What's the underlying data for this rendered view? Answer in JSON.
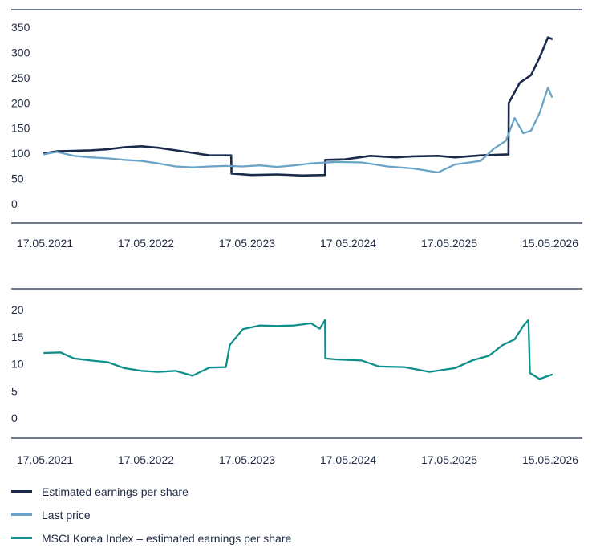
{
  "colors": {
    "eps": "#1b2a4a",
    "price": "#6aa3c8",
    "msci": "#0f8f8a",
    "axis": "#1b2a4a"
  },
  "chart_data": [
    {
      "type": "line",
      "x_ticks": [
        "17.05.2021",
        "17.05.2022",
        "17.05.2023",
        "17.05.2024",
        "17.05.2025",
        "15.05.2026"
      ],
      "y_ticks": [
        "0",
        "50",
        "100",
        "150",
        "200",
        "250",
        "300",
        "350"
      ],
      "ylim": [
        0,
        350
      ],
      "xlim": [
        "2021-05-17",
        "2026-05-15"
      ],
      "series": [
        {
          "name": "Estimated earnings per share",
          "color_key": "eps",
          "points": [
            [
              "2021-05-17",
              100
            ],
            [
              "2021-07-01",
              104
            ],
            [
              "2021-09-01",
              105
            ],
            [
              "2021-11-01",
              106
            ],
            [
              "2022-01-01",
              108
            ],
            [
              "2022-03-01",
              112
            ],
            [
              "2022-05-01",
              114
            ],
            [
              "2022-07-01",
              111
            ],
            [
              "2022-09-01",
              106
            ],
            [
              "2022-11-01",
              101
            ],
            [
              "2023-01-01",
              96
            ],
            [
              "2023-03-20",
              96
            ],
            [
              "2023-03-21",
              60
            ],
            [
              "2023-06-01",
              57
            ],
            [
              "2023-09-01",
              58
            ],
            [
              "2023-12-01",
              56
            ],
            [
              "2024-02-20",
              57
            ],
            [
              "2024-02-21",
              87
            ],
            [
              "2024-05-01",
              88
            ],
            [
              "2024-08-01",
              95
            ],
            [
              "2024-11-01",
              92
            ],
            [
              "2025-01-01",
              94
            ],
            [
              "2025-04-01",
              95
            ],
            [
              "2025-06-01",
              92
            ],
            [
              "2025-09-01",
              96
            ],
            [
              "2025-12-10",
              98
            ],
            [
              "2025-12-11",
              200
            ],
            [
              "2026-01-20",
              240
            ],
            [
              "2026-03-01",
              255
            ],
            [
              "2026-04-01",
              290
            ],
            [
              "2026-05-01",
              330
            ],
            [
              "2026-05-15",
              327
            ]
          ]
        },
        {
          "name": "Last price",
          "color_key": "price",
          "points": [
            [
              "2021-05-17",
              98
            ],
            [
              "2021-07-01",
              103
            ],
            [
              "2021-09-01",
              95
            ],
            [
              "2021-11-01",
              92
            ],
            [
              "2022-01-01",
              90
            ],
            [
              "2022-03-01",
              87
            ],
            [
              "2022-05-01",
              85
            ],
            [
              "2022-07-01",
              80
            ],
            [
              "2022-09-01",
              74
            ],
            [
              "2022-11-01",
              72
            ],
            [
              "2023-01-01",
              74
            ],
            [
              "2023-03-01",
              75
            ],
            [
              "2023-05-01",
              74
            ],
            [
              "2023-07-01",
              76
            ],
            [
              "2023-09-01",
              73
            ],
            [
              "2023-11-01",
              76
            ],
            [
              "2024-01-01",
              80
            ],
            [
              "2024-04-01",
              83
            ],
            [
              "2024-07-01",
              82
            ],
            [
              "2024-10-01",
              74
            ],
            [
              "2025-01-01",
              70
            ],
            [
              "2025-04-01",
              62
            ],
            [
              "2025-06-01",
              78
            ],
            [
              "2025-09-01",
              85
            ],
            [
              "2025-10-20",
              110
            ],
            [
              "2025-12-01",
              125
            ],
            [
              "2026-01-01",
              170
            ],
            [
              "2026-02-01",
              140
            ],
            [
              "2026-03-01",
              145
            ],
            [
              "2026-04-01",
              180
            ],
            [
              "2026-05-01",
              230
            ],
            [
              "2026-05-15",
              212
            ]
          ]
        }
      ],
      "grid": false
    },
    {
      "type": "line",
      "x_ticks": [
        "17.05.2021",
        "17.05.2022",
        "17.05.2023",
        "17.05.2024",
        "17.05.2025",
        "15.05.2026"
      ],
      "y_ticks": [
        "0",
        "5",
        "10",
        "15",
        "20"
      ],
      "ylim": [
        0,
        20
      ],
      "xlim": [
        "2021-05-17",
        "2026-05-15"
      ],
      "series": [
        {
          "name": "MSCI Korea Index – estimated earnings per share",
          "color_key": "msci",
          "points": [
            [
              "2021-05-17",
              12
            ],
            [
              "2021-07-15",
              12.1
            ],
            [
              "2021-09-01",
              11
            ],
            [
              "2021-11-01",
              10.6
            ],
            [
              "2022-01-01",
              10.3
            ],
            [
              "2022-03-01",
              9.2
            ],
            [
              "2022-05-01",
              8.7
            ],
            [
              "2022-07-01",
              8.5
            ],
            [
              "2022-09-01",
              8.7
            ],
            [
              "2022-11-01",
              7.8
            ],
            [
              "2023-01-01",
              9.3
            ],
            [
              "2023-03-01",
              9.4
            ],
            [
              "2023-03-15",
              13.5
            ],
            [
              "2023-05-01",
              16.4
            ],
            [
              "2023-07-01",
              17.1
            ],
            [
              "2023-09-01",
              17
            ],
            [
              "2023-11-01",
              17.1
            ],
            [
              "2024-01-01",
              17.5
            ],
            [
              "2024-02-01",
              16.5
            ],
            [
              "2024-02-20",
              18.1
            ],
            [
              "2024-02-21",
              11
            ],
            [
              "2024-04-01",
              10.8
            ],
            [
              "2024-07-01",
              10.6
            ],
            [
              "2024-09-01",
              9.5
            ],
            [
              "2024-12-01",
              9.4
            ],
            [
              "2025-03-01",
              8.5
            ],
            [
              "2025-06-01",
              9.2
            ],
            [
              "2025-08-01",
              10.6
            ],
            [
              "2025-10-01",
              11.5
            ],
            [
              "2025-11-20",
              13.5
            ],
            [
              "2026-01-01",
              14.5
            ],
            [
              "2026-02-01",
              17
            ],
            [
              "2026-02-20",
              18.1
            ],
            [
              "2026-02-25",
              8.3
            ],
            [
              "2026-04-01",
              7.2
            ],
            [
              "2026-05-15",
              8
            ]
          ]
        }
      ],
      "grid": false
    }
  ],
  "legend": [
    {
      "label": "Estimated earnings per share",
      "color_key": "eps"
    },
    {
      "label": "Last price",
      "color_key": "price"
    },
    {
      "label": "MSCI Korea Index – estimated earnings per share",
      "color_key": "msci"
    }
  ]
}
